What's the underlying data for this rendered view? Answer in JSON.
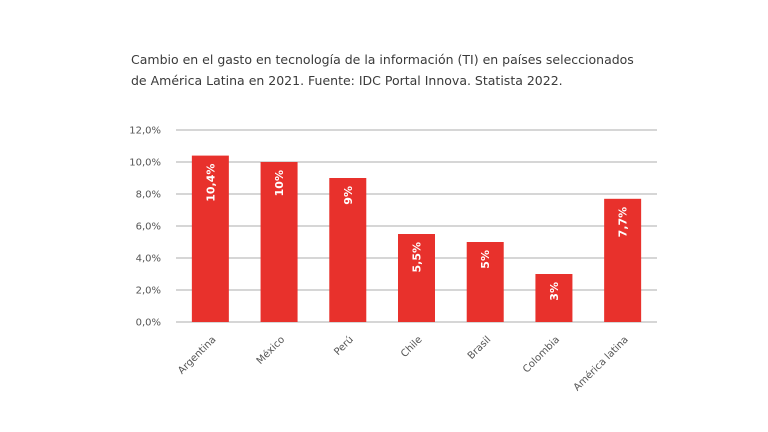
{
  "chart_data": {
    "type": "bar",
    "title": "Cambio en el gasto en tecnología de la información (TI) en países seleccionados de América Latina en 2021. Fuente: IDC Portal Innova. Statista 2022.",
    "title_lines": [
      "Cambio en el gasto en tecnología de la información (TI) en países seleccionados",
      "de América Latina en 2021. Fuente: IDC Portal Innova. Statista 2022."
    ],
    "categories": [
      "Argentina",
      "México",
      "Perú",
      "Chile",
      "Brasil",
      "Colombia",
      "América latina"
    ],
    "values": [
      10.4,
      10,
      9,
      5.5,
      5,
      3,
      7.7
    ],
    "data_labels": [
      "10,4%",
      "10%",
      "9%",
      "5,5%",
      "5%",
      "3%",
      "7,7%"
    ],
    "yticks": [
      0,
      2,
      4,
      6,
      8,
      10,
      12
    ],
    "ytick_labels": [
      "0,0%",
      "2,0%",
      "4,0%",
      "6,0%",
      "8,0%",
      "10,0%",
      "12,0%"
    ],
    "xlabel": "",
    "ylabel": "",
    "ylim": [
      0,
      12
    ],
    "grid": true,
    "legend": "none",
    "bar_color": "#e8312c"
  }
}
